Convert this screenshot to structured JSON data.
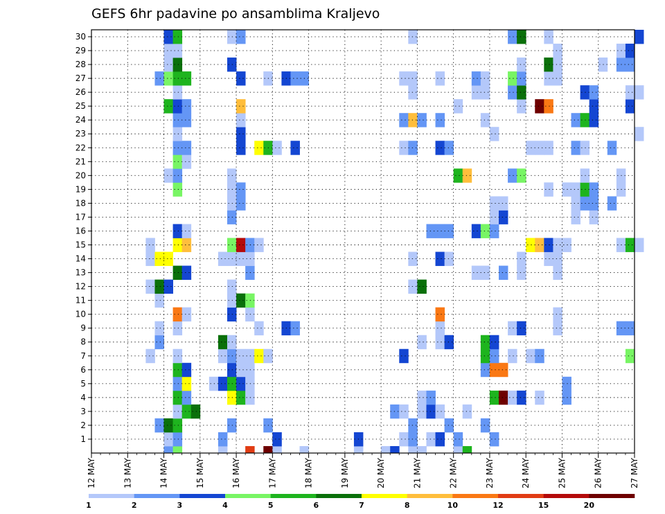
{
  "chart_data": {
    "type": "heatmap",
    "title": "GEFS 6hr padavine po ansamblima Kraljevo",
    "x_labels": [
      "12 MAY",
      "13 MAY",
      "14 MAY",
      "15 MAY",
      "16 MAY",
      "17 MAY",
      "18 MAY",
      "19 MAY",
      "20 MAY",
      "21 MAY",
      "22 MAY",
      "23 MAY",
      "24 MAY",
      "25 MAY",
      "26 MAY",
      "27 MAY"
    ],
    "y_labels": [
      "1",
      "2",
      "3",
      "4",
      "5",
      "6",
      "7",
      "8",
      "9",
      "10",
      "11",
      "12",
      "13",
      "14",
      "15",
      "16",
      "17",
      "18",
      "19",
      "20",
      "21",
      "22",
      "23",
      "24",
      "25",
      "26",
      "27",
      "28",
      "29",
      "30"
    ],
    "y_range": [
      0,
      30
    ],
    "steps_per_day": 4,
    "grid": true,
    "colorbar": {
      "placement": "bottom",
      "labels": [
        "1",
        "2",
        "3",
        "4",
        "5",
        "6",
        "7",
        "8",
        "10",
        "12",
        "15",
        "20"
      ],
      "colors": [
        "#b4c8fa",
        "#6496f5",
        "#1446d2",
        "#78f564",
        "#1eb41e",
        "#0a700a",
        "#ffff00",
        "#ffbe3c",
        "#fa7814",
        "#e13c14",
        "#b40a0a",
        "#6e0000"
      ]
    },
    "cells": [
      [
        0,
        8,
        2
      ],
      [
        0,
        9,
        4
      ],
      [
        0,
        14,
        1
      ],
      [
        0,
        17,
        10
      ],
      [
        0,
        19,
        12
      ],
      [
        0,
        20,
        1
      ],
      [
        0,
        23,
        1
      ],
      [
        0,
        29,
        1
      ],
      [
        0,
        32,
        1
      ],
      [
        0,
        33,
        3
      ],
      [
        0,
        35,
        1
      ],
      [
        0,
        36,
        1
      ],
      [
        0,
        40,
        1
      ],
      [
        0,
        41,
        5
      ],
      [
        1,
        8,
        1
      ],
      [
        1,
        9,
        2
      ],
      [
        1,
        14,
        2
      ],
      [
        1,
        20,
        3
      ],
      [
        1,
        29,
        3
      ],
      [
        1,
        34,
        1
      ],
      [
        1,
        35,
        2
      ],
      [
        1,
        37,
        1
      ],
      [
        1,
        38,
        3
      ],
      [
        1,
        40,
        2
      ],
      [
        1,
        44,
        2
      ],
      [
        2,
        7,
        2
      ],
      [
        2,
        8,
        6
      ],
      [
        2,
        9,
        5
      ],
      [
        2,
        15,
        2
      ],
      [
        2,
        19,
        2
      ],
      [
        2,
        35,
        2
      ],
      [
        2,
        39,
        2
      ],
      [
        2,
        43,
        2
      ],
      [
        3,
        9,
        1
      ],
      [
        3,
        10,
        5
      ],
      [
        3,
        11,
        6
      ],
      [
        3,
        33,
        2
      ],
      [
        3,
        34,
        1
      ],
      [
        3,
        36,
        1
      ],
      [
        3,
        37,
        3
      ],
      [
        3,
        38,
        1
      ],
      [
        3,
        41,
        1
      ],
      [
        4,
        9,
        5
      ],
      [
        4,
        10,
        2
      ],
      [
        4,
        15,
        7
      ],
      [
        4,
        16,
        5
      ],
      [
        4,
        17,
        1
      ],
      [
        4,
        36,
        1
      ],
      [
        4,
        37,
        2
      ],
      [
        4,
        44,
        5
      ],
      [
        4,
        45,
        12
      ],
      [
        4,
        46,
        1
      ],
      [
        4,
        47,
        3
      ],
      [
        4,
        49,
        1
      ],
      [
        4,
        52,
        2
      ],
      [
        5,
        9,
        2
      ],
      [
        5,
        10,
        7
      ],
      [
        5,
        13,
        1
      ],
      [
        5,
        14,
        3
      ],
      [
        5,
        15,
        5
      ],
      [
        5,
        16,
        3
      ],
      [
        5,
        17,
        1
      ],
      [
        5,
        52,
        2
      ],
      [
        6,
        9,
        5
      ],
      [
        6,
        10,
        3
      ],
      [
        6,
        15,
        3
      ],
      [
        6,
        16,
        1
      ],
      [
        6,
        17,
        1
      ],
      [
        6,
        43,
        2
      ],
      [
        6,
        44,
        9
      ],
      [
        6,
        45,
        9
      ],
      [
        7,
        6,
        1
      ],
      [
        7,
        9,
        1
      ],
      [
        7,
        14,
        1
      ],
      [
        7,
        15,
        2
      ],
      [
        7,
        16,
        1
      ],
      [
        7,
        17,
        1
      ],
      [
        7,
        18,
        7
      ],
      [
        7,
        19,
        1
      ],
      [
        7,
        34,
        3
      ],
      [
        7,
        43,
        5
      ],
      [
        7,
        44,
        2
      ],
      [
        7,
        46,
        1
      ],
      [
        7,
        48,
        1
      ],
      [
        7,
        49,
        2
      ],
      [
        7,
        59,
        4
      ],
      [
        8,
        7,
        2
      ],
      [
        8,
        14,
        6
      ],
      [
        8,
        15,
        1
      ],
      [
        8,
        36,
        1
      ],
      [
        8,
        38,
        1
      ],
      [
        8,
        39,
        3
      ],
      [
        8,
        43,
        5
      ],
      [
        8,
        44,
        3
      ],
      [
        9,
        7,
        1
      ],
      [
        9,
        9,
        1
      ],
      [
        9,
        18,
        1
      ],
      [
        9,
        21,
        3
      ],
      [
        9,
        22,
        2
      ],
      [
        9,
        38,
        1
      ],
      [
        9,
        46,
        1
      ],
      [
        9,
        47,
        3
      ],
      [
        9,
        51,
        1
      ],
      [
        9,
        58,
        2
      ],
      [
        9,
        59,
        2
      ],
      [
        10,
        9,
        9
      ],
      [
        10,
        10,
        1
      ],
      [
        10,
        15,
        3
      ],
      [
        10,
        17,
        1
      ],
      [
        10,
        38,
        9
      ],
      [
        10,
        51,
        1
      ],
      [
        11,
        7,
        1
      ],
      [
        11,
        15,
        1
      ],
      [
        11,
        16,
        6
      ],
      [
        11,
        17,
        4
      ],
      [
        12,
        6,
        1
      ],
      [
        12,
        7,
        6
      ],
      [
        12,
        8,
        3
      ],
      [
        12,
        15,
        1
      ],
      [
        12,
        35,
        1
      ],
      [
        12,
        36,
        6
      ],
      [
        13,
        9,
        6
      ],
      [
        13,
        10,
        3
      ],
      [
        13,
        17,
        2
      ],
      [
        13,
        42,
        1
      ],
      [
        13,
        43,
        1
      ],
      [
        13,
        45,
        2
      ],
      [
        13,
        47,
        1
      ],
      [
        13,
        51,
        1
      ],
      [
        14,
        6,
        1
      ],
      [
        14,
        7,
        7
      ],
      [
        14,
        8,
        7
      ],
      [
        14,
        14,
        1
      ],
      [
        14,
        15,
        1
      ],
      [
        14,
        16,
        1
      ],
      [
        14,
        17,
        1
      ],
      [
        14,
        35,
        1
      ],
      [
        14,
        38,
        3
      ],
      [
        14,
        39,
        1
      ],
      [
        14,
        47,
        1
      ],
      [
        14,
        50,
        1
      ],
      [
        14,
        51,
        1
      ],
      [
        15,
        6,
        1
      ],
      [
        15,
        9,
        7
      ],
      [
        15,
        10,
        8
      ],
      [
        15,
        15,
        4
      ],
      [
        15,
        16,
        11
      ],
      [
        15,
        17,
        2
      ],
      [
        15,
        18,
        1
      ],
      [
        15,
        48,
        7
      ],
      [
        15,
        49,
        8
      ],
      [
        15,
        50,
        3
      ],
      [
        15,
        51,
        1
      ],
      [
        15,
        52,
        1
      ],
      [
        15,
        58,
        1
      ],
      [
        15,
        59,
        5
      ],
      [
        15,
        60,
        1
      ],
      [
        16,
        9,
        3
      ],
      [
        16,
        10,
        1
      ],
      [
        16,
        37,
        2
      ],
      [
        16,
        38,
        2
      ],
      [
        16,
        39,
        2
      ],
      [
        16,
        42,
        3
      ],
      [
        16,
        43,
        4
      ],
      [
        16,
        44,
        2
      ],
      [
        17,
        15,
        2
      ],
      [
        17,
        44,
        1
      ],
      [
        17,
        45,
        3
      ],
      [
        17,
        53,
        1
      ],
      [
        17,
        55,
        1
      ],
      [
        18,
        15,
        1
      ],
      [
        18,
        16,
        2
      ],
      [
        18,
        44,
        1
      ],
      [
        18,
        45,
        1
      ],
      [
        18,
        53,
        1
      ],
      [
        18,
        54,
        2
      ],
      [
        18,
        55,
        2
      ],
      [
        18,
        57,
        2
      ],
      [
        19,
        9,
        4
      ],
      [
        19,
        15,
        1
      ],
      [
        19,
        16,
        2
      ],
      [
        19,
        50,
        1
      ],
      [
        19,
        52,
        1
      ],
      [
        19,
        53,
        1
      ],
      [
        19,
        54,
        5
      ],
      [
        19,
        55,
        2
      ],
      [
        19,
        58,
        1
      ],
      [
        20,
        8,
        1
      ],
      [
        20,
        9,
        2
      ],
      [
        20,
        15,
        1
      ],
      [
        20,
        40,
        5
      ],
      [
        20,
        41,
        8
      ],
      [
        20,
        46,
        2
      ],
      [
        20,
        47,
        4
      ],
      [
        20,
        54,
        1
      ],
      [
        20,
        58,
        1
      ],
      [
        21,
        9,
        4
      ],
      [
        21,
        10,
        1
      ],
      [
        22,
        9,
        2
      ],
      [
        22,
        10,
        2
      ],
      [
        22,
        16,
        3
      ],
      [
        22,
        18,
        7
      ],
      [
        22,
        19,
        5
      ],
      [
        22,
        20,
        1
      ],
      [
        22,
        22,
        3
      ],
      [
        22,
        34,
        1
      ],
      [
        22,
        35,
        2
      ],
      [
        22,
        38,
        3
      ],
      [
        22,
        39,
        2
      ],
      [
        22,
        48,
        1
      ],
      [
        22,
        49,
        1
      ],
      [
        22,
        50,
        1
      ],
      [
        22,
        53,
        2
      ],
      [
        22,
        54,
        1
      ],
      [
        22,
        57,
        2
      ],
      [
        23,
        9,
        1
      ],
      [
        23,
        16,
        3
      ],
      [
        23,
        44,
        1
      ],
      [
        23,
        60,
        1
      ],
      [
        24,
        9,
        2
      ],
      [
        24,
        10,
        2
      ],
      [
        24,
        16,
        1
      ],
      [
        24,
        34,
        2
      ],
      [
        24,
        35,
        8
      ],
      [
        24,
        36,
        2
      ],
      [
        24,
        38,
        2
      ],
      [
        24,
        43,
        1
      ],
      [
        24,
        53,
        2
      ],
      [
        24,
        54,
        5
      ],
      [
        24,
        55,
        3
      ],
      [
        25,
        8,
        5
      ],
      [
        25,
        9,
        3
      ],
      [
        25,
        10,
        2
      ],
      [
        25,
        16,
        8
      ],
      [
        25,
        40,
        1
      ],
      [
        25,
        47,
        1
      ],
      [
        25,
        49,
        12
      ],
      [
        25,
        50,
        9
      ],
      [
        25,
        55,
        3
      ],
      [
        25,
        59,
        3
      ],
      [
        26,
        9,
        1
      ],
      [
        26,
        35,
        1
      ],
      [
        26,
        42,
        1
      ],
      [
        26,
        43,
        1
      ],
      [
        26,
        46,
        2
      ],
      [
        26,
        47,
        6
      ],
      [
        26,
        54,
        3
      ],
      [
        26,
        55,
        2
      ],
      [
        26,
        59,
        1
      ],
      [
        26,
        60,
        1
      ],
      [
        27,
        7,
        2
      ],
      [
        27,
        8,
        4
      ],
      [
        27,
        9,
        5
      ],
      [
        27,
        10,
        5
      ],
      [
        27,
        16,
        3
      ],
      [
        27,
        19,
        1
      ],
      [
        27,
        21,
        3
      ],
      [
        27,
        22,
        2
      ],
      [
        27,
        23,
        2
      ],
      [
        27,
        34,
        1
      ],
      [
        27,
        35,
        1
      ],
      [
        27,
        38,
        1
      ],
      [
        27,
        42,
        2
      ],
      [
        27,
        43,
        1
      ],
      [
        27,
        46,
        4
      ],
      [
        27,
        47,
        2
      ],
      [
        27,
        50,
        1
      ],
      [
        27,
        51,
        1
      ],
      [
        28,
        8,
        1
      ],
      [
        28,
        9,
        6
      ],
      [
        28,
        15,
        3
      ],
      [
        28,
        47,
        1
      ],
      [
        28,
        50,
        6
      ],
      [
        28,
        51,
        1
      ],
      [
        28,
        56,
        1
      ],
      [
        28,
        58,
        2
      ],
      [
        28,
        59,
        2
      ],
      [
        29,
        8,
        1
      ],
      [
        29,
        9,
        1
      ],
      [
        29,
        51,
        1
      ],
      [
        29,
        58,
        1
      ],
      [
        29,
        59,
        3
      ],
      [
        30,
        8,
        3
      ],
      [
        30,
        9,
        5
      ],
      [
        30,
        15,
        1
      ],
      [
        30,
        16,
        2
      ],
      [
        30,
        35,
        1
      ],
      [
        30,
        46,
        2
      ],
      [
        30,
        47,
        6
      ],
      [
        30,
        50,
        1
      ],
      [
        30,
        60,
        3
      ]
    ]
  }
}
